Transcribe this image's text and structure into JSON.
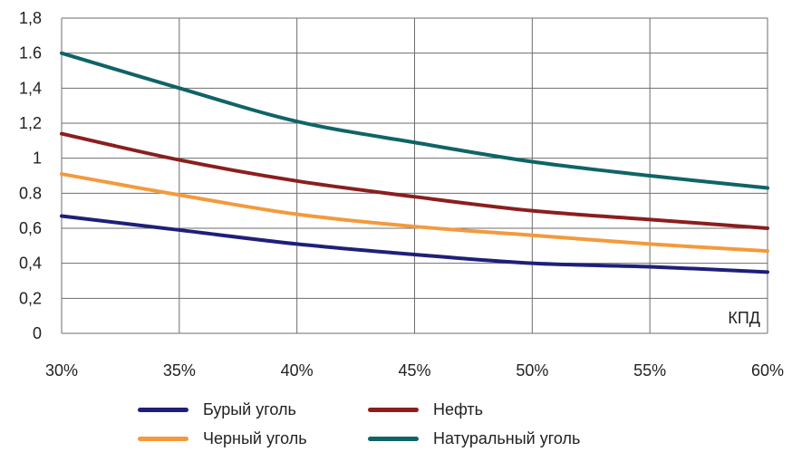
{
  "chart_data": {
    "type": "line",
    "x": [
      "30%",
      "35%",
      "40%",
      "45%",
      "50%",
      "55%",
      "60%"
    ],
    "x_values": [
      30,
      35,
      40,
      45,
      50,
      55,
      60
    ],
    "y_tick_labels": [
      "0",
      "0,2",
      "0,4",
      "0,6",
      "0.8",
      "1",
      "1,2",
      "1,4",
      "1.6",
      "1,8"
    ],
    "ylim": [
      0,
      1.8
    ],
    "xlim": [
      30,
      60
    ],
    "x_unit_label": "КПД",
    "grid": true,
    "legend_position": "bottom",
    "series": [
      {
        "name": "Бурый уголь",
        "color": "#1f1f7a",
        "values": [
          0.67,
          0.59,
          0.51,
          0.45,
          0.4,
          0.38,
          0.35
        ]
      },
      {
        "name": "Нефть",
        "color": "#8b1e1e",
        "values": [
          1.14,
          0.99,
          0.87,
          0.78,
          0.7,
          0.65,
          0.6
        ]
      },
      {
        "name": "Черный уголь",
        "color": "#f39a3c",
        "values": [
          0.91,
          0.79,
          0.68,
          0.61,
          0.56,
          0.51,
          0.47
        ]
      },
      {
        "name": "Натуральный уголь",
        "color": "#0f6466",
        "values": [
          1.6,
          1.4,
          1.21,
          1.09,
          0.98,
          0.9,
          0.83
        ]
      }
    ]
  }
}
